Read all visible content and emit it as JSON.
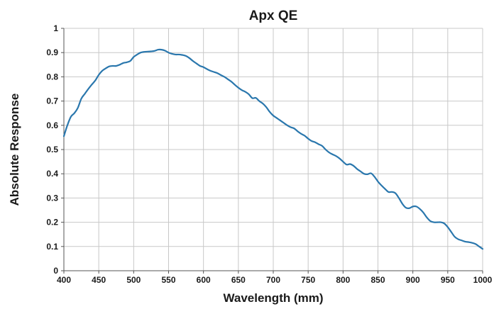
{
  "chart_data": {
    "type": "line",
    "title": "Apx QE",
    "xlabel": "Wavelength (mm)",
    "ylabel": "Absolute Response",
    "xlim": [
      400,
      1000
    ],
    "ylim": [
      0,
      1
    ],
    "x_ticks": [
      400,
      450,
      500,
      550,
      600,
      650,
      700,
      750,
      800,
      850,
      900,
      950,
      1000
    ],
    "y_ticks": [
      0,
      0.1,
      0.2,
      0.3,
      0.4,
      0.5,
      0.6,
      0.7,
      0.8,
      0.9,
      1
    ],
    "x_tick_labels": [
      "400",
      "450",
      "500",
      "550",
      "600",
      "650",
      "700",
      "750",
      "800",
      "850",
      "900",
      "950",
      "1000"
    ],
    "y_tick_labels": [
      "0",
      "0.1",
      "0.2",
      "0.3",
      "0.4",
      "0.5",
      "0.6",
      "0.7",
      "0.8",
      "0.9",
      "1"
    ],
    "grid": true,
    "legend": "none",
    "line_color": "#2a77ad",
    "grid_color": "#c8c8c8",
    "series": [
      {
        "x": [
          400,
          405,
          410,
          415,
          420,
          425,
          430,
          435,
          440,
          445,
          450,
          455,
          460,
          465,
          470,
          475,
          480,
          485,
          490,
          495,
          500,
          505,
          510,
          515,
          520,
          525,
          530,
          535,
          540,
          545,
          550,
          555,
          560,
          565,
          570,
          575,
          580,
          585,
          590,
          595,
          600,
          605,
          610,
          615,
          620,
          625,
          630,
          635,
          640,
          645,
          650,
          655,
          660,
          665,
          670,
          675,
          680,
          685,
          690,
          695,
          700,
          705,
          710,
          715,
          720,
          725,
          730,
          735,
          740,
          745,
          750,
          755,
          760,
          765,
          770,
          775,
          780,
          785,
          790,
          795,
          800,
          805,
          810,
          815,
          820,
          825,
          830,
          835,
          840,
          845,
          850,
          855,
          860,
          865,
          870,
          875,
          880,
          885,
          890,
          895,
          900,
          905,
          910,
          915,
          920,
          925,
          930,
          935,
          940,
          945,
          950,
          955,
          960,
          965,
          970,
          975,
          980,
          985,
          990,
          995,
          1000
        ],
        "values": [
          0.555,
          0.6,
          0.635,
          0.65,
          0.672,
          0.71,
          0.73,
          0.75,
          0.768,
          0.785,
          0.808,
          0.825,
          0.835,
          0.843,
          0.845,
          0.845,
          0.85,
          0.857,
          0.86,
          0.865,
          0.882,
          0.892,
          0.9,
          0.903,
          0.904,
          0.905,
          0.907,
          0.912,
          0.912,
          0.908,
          0.9,
          0.895,
          0.892,
          0.892,
          0.89,
          0.886,
          0.877,
          0.865,
          0.855,
          0.845,
          0.84,
          0.832,
          0.825,
          0.82,
          0.815,
          0.807,
          0.8,
          0.79,
          0.78,
          0.767,
          0.755,
          0.745,
          0.738,
          0.728,
          0.712,
          0.713,
          0.7,
          0.69,
          0.675,
          0.655,
          0.64,
          0.63,
          0.62,
          0.61,
          0.6,
          0.592,
          0.587,
          0.575,
          0.565,
          0.557,
          0.545,
          0.535,
          0.53,
          0.522,
          0.515,
          0.5,
          0.488,
          0.48,
          0.473,
          0.463,
          0.45,
          0.438,
          0.44,
          0.433,
          0.42,
          0.41,
          0.4,
          0.398,
          0.402,
          0.388,
          0.368,
          0.352,
          0.338,
          0.325,
          0.325,
          0.32,
          0.3,
          0.276,
          0.26,
          0.258,
          0.265,
          0.265,
          0.255,
          0.24,
          0.22,
          0.205,
          0.2,
          0.2,
          0.2,
          0.195,
          0.18,
          0.16,
          0.14,
          0.13,
          0.125,
          0.12,
          0.118,
          0.115,
          0.11,
          0.1,
          0.09
        ]
      }
    ]
  }
}
